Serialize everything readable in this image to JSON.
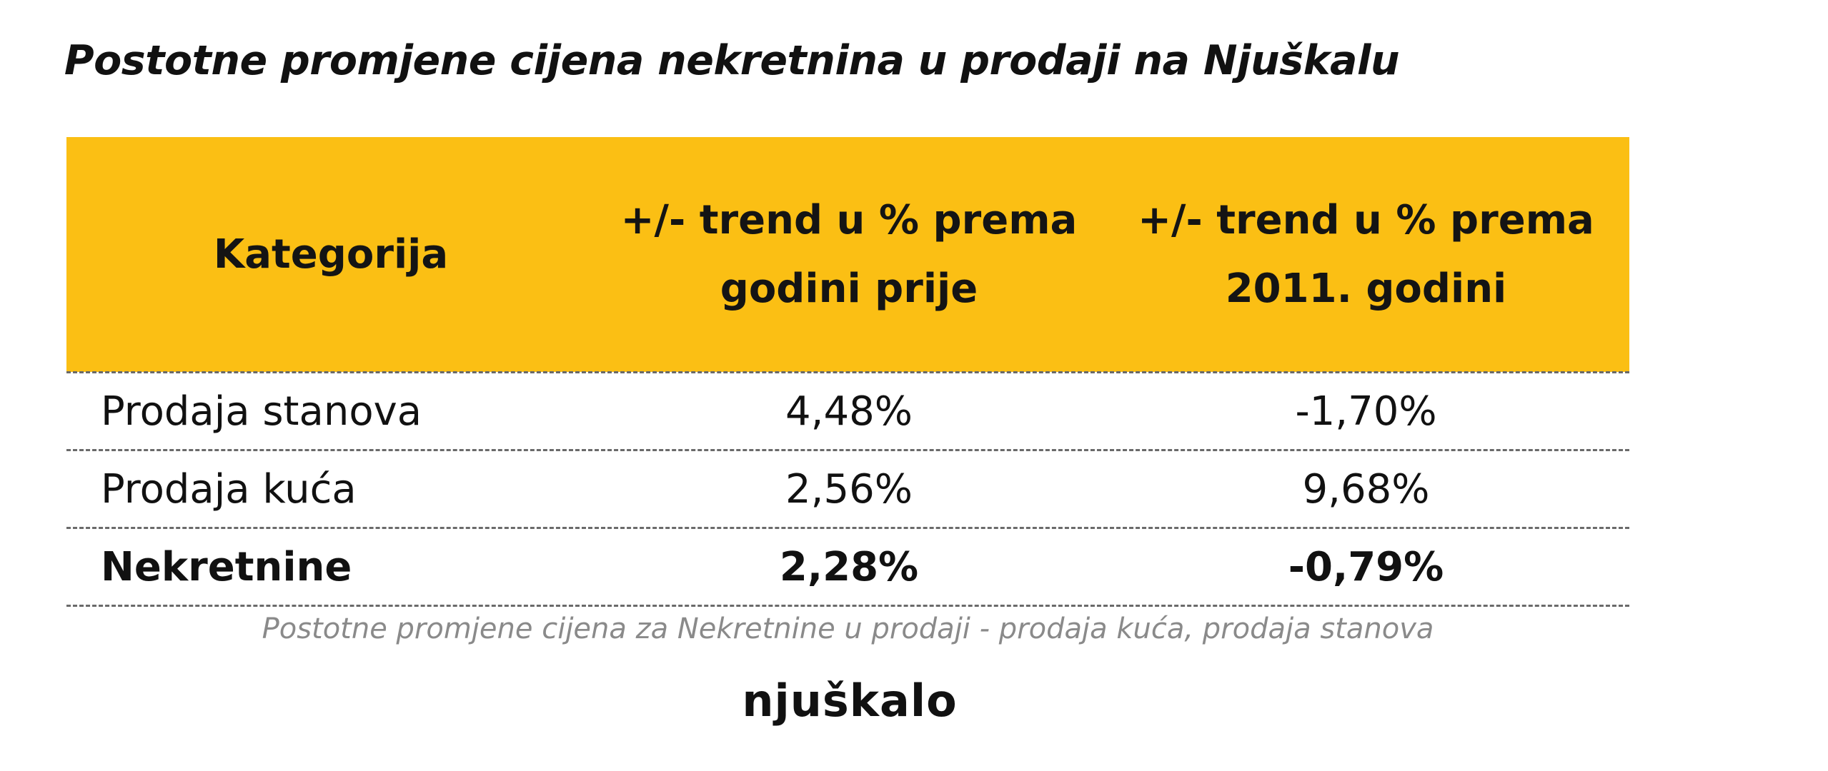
{
  "title": "Postotne promjene cijena nekretnina u prodaji na Njuškalu",
  "table": {
    "headers": [
      {
        "line1": "Kategorija",
        "line2": ""
      },
      {
        "line1": "+/- trend u % prema",
        "line2": "godini prije"
      },
      {
        "line1": "+/- trend u % prema",
        "line2": "2011. godini"
      }
    ],
    "rows": [
      {
        "category": "Prodaja stanova",
        "prev_year": "4,48%",
        "vs_2011": "-1,70%"
      },
      {
        "category": "Prodaja kuća",
        "prev_year": "2,56%",
        "vs_2011": "9,68%"
      },
      {
        "category": "Nekretnine",
        "prev_year": "2,28%",
        "vs_2011": "-0,79%"
      }
    ]
  },
  "caption": "Postotne promjene cijena za Nekretnine u prodaji - prodaja kuća, prodaja stanova",
  "logo": "njuškalo",
  "colors": {
    "header_background": "#fbbf14",
    "caption_text": "#8a8a8a",
    "row_divider": "#6a6a6a"
  }
}
